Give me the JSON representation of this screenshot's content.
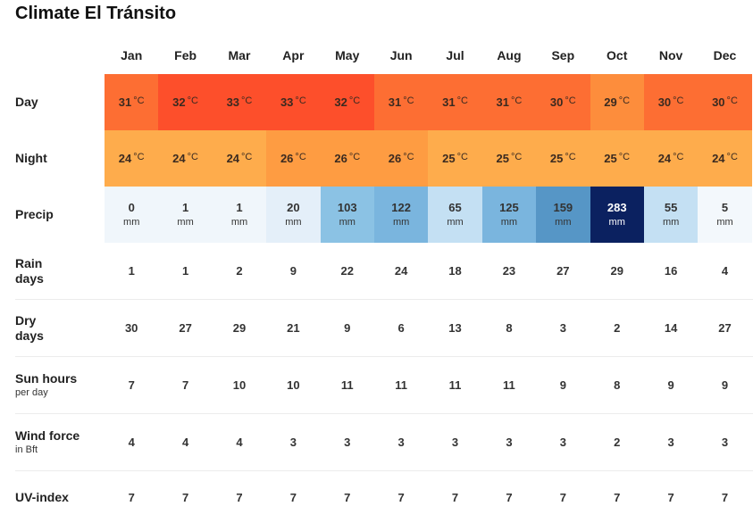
{
  "title": "Climate El Tránsito",
  "months": [
    "Jan",
    "Feb",
    "Mar",
    "Apr",
    "May",
    "Jun",
    "Jul",
    "Aug",
    "Sep",
    "Oct",
    "Nov",
    "Dec"
  ],
  "rows": {
    "day": {
      "label": "Day",
      "unit": "°C",
      "values": [
        "31",
        "32",
        "33",
        "33",
        "32",
        "31",
        "31",
        "31",
        "30",
        "29",
        "30",
        "30"
      ],
      "colors": [
        "#fd6e33",
        "#fd4f2b",
        "#fd4f2b",
        "#fd4f2b",
        "#fd4f2b",
        "#fd6e33",
        "#fd6e33",
        "#fd6e33",
        "#fd6e33",
        "#fd8d3c",
        "#fd6e33",
        "#fd6e33"
      ]
    },
    "night": {
      "label": "Night",
      "unit": "°C",
      "values": [
        "24",
        "24",
        "24",
        "26",
        "26",
        "26",
        "25",
        "25",
        "25",
        "25",
        "24",
        "24"
      ],
      "colors": [
        "#feac4c",
        "#feac4c",
        "#feac4c",
        "#fe9c42",
        "#fe9c42",
        "#fe9c42",
        "#feac4c",
        "#feac4c",
        "#feac4c",
        "#feac4c",
        "#feac4c",
        "#feac4c"
      ]
    },
    "precip": {
      "label": "Precip",
      "unit": "mm",
      "values": [
        "0",
        "1",
        "1",
        "20",
        "103",
        "122",
        "65",
        "125",
        "159",
        "283",
        "55",
        "5"
      ],
      "colors": [
        "#f0f6fb",
        "#f0f6fb",
        "#f0f6fb",
        "#e4eff9",
        "#8bc2e4",
        "#7ab5de",
        "#c4e0f3",
        "#7ab5de",
        "#5696c6",
        "#0b2160",
        "#c4e0f3",
        "#f3f8fc"
      ],
      "text_colors": [
        "#333",
        "#333",
        "#333",
        "#333",
        "#333",
        "#333",
        "#333",
        "#333",
        "#333",
        "#ffffff",
        "#333",
        "#333"
      ]
    },
    "rain_days": {
      "label": "Rain",
      "label2": "days",
      "values": [
        "1",
        "1",
        "2",
        "9",
        "22",
        "24",
        "18",
        "23",
        "27",
        "29",
        "16",
        "4"
      ]
    },
    "dry_days": {
      "label": "Dry",
      "label2": "days",
      "values": [
        "30",
        "27",
        "29",
        "21",
        "9",
        "6",
        "13",
        "8",
        "3",
        "2",
        "14",
        "27"
      ]
    },
    "sun_hours": {
      "label": "Sun hours",
      "sub": "per day",
      "values": [
        "7",
        "7",
        "10",
        "10",
        "11",
        "11",
        "11",
        "11",
        "9",
        "8",
        "9",
        "9"
      ]
    },
    "wind_force": {
      "label": "Wind force",
      "sub": "in Bft",
      "values": [
        "4",
        "4",
        "4",
        "3",
        "3",
        "3",
        "3",
        "3",
        "3",
        "2",
        "3",
        "3"
      ]
    },
    "uv_index": {
      "label": "UV-index",
      "values": [
        "7",
        "7",
        "7",
        "7",
        "7",
        "7",
        "7",
        "7",
        "7",
        "7",
        "7",
        "7"
      ]
    }
  }
}
